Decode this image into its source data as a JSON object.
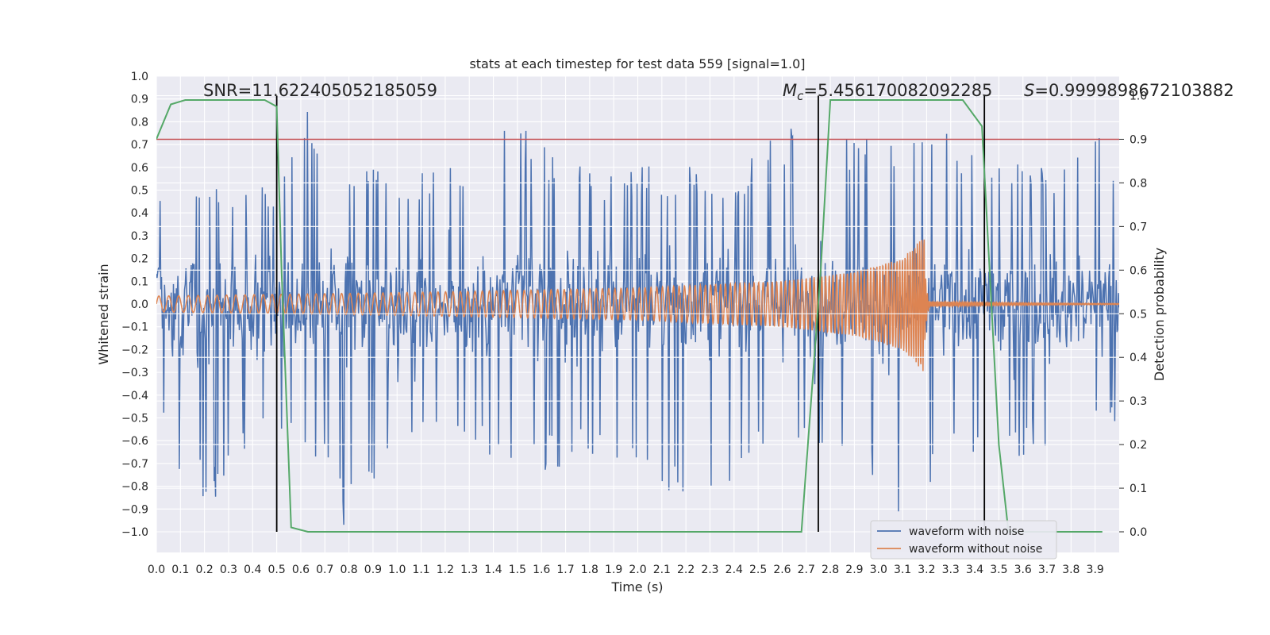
{
  "chart_data": {
    "type": "line",
    "title": "stats at each timestep for test data 559 [signal=1.0]",
    "xlabel": "Time (s)",
    "ylabel": "Whitened strain",
    "y2label": "Detection probability",
    "xlim": [
      0.0,
      4.0
    ],
    "ylim": [
      -1.09,
      1.0
    ],
    "y2lim": [
      -0.05,
      1.05
    ],
    "grid": true,
    "legend_position": "lower-right",
    "x_ticks": [
      "0.0",
      "0.1",
      "0.2",
      "0.3",
      "0.4",
      "0.5",
      "0.6",
      "0.7",
      "0.8",
      "0.9",
      "1.0",
      "1.1",
      "1.2",
      "1.3",
      "1.4",
      "1.5",
      "1.6",
      "1.7",
      "1.8",
      "1.9",
      "2.0",
      "2.1",
      "2.2",
      "2.3",
      "2.4",
      "2.5",
      "2.6",
      "2.7",
      "2.8",
      "2.9",
      "3.0",
      "3.1",
      "3.2",
      "3.3",
      "3.4",
      "3.5",
      "3.6",
      "3.7",
      "3.8",
      "3.9"
    ],
    "y_ticks": [
      "1.0",
      "0.9",
      "0.8",
      "0.7",
      "0.6",
      "0.5",
      "0.4",
      "0.3",
      "0.2",
      "0.1",
      "0.0",
      "−0.1",
      "−0.2",
      "−0.3",
      "−0.4",
      "−0.5",
      "−0.6",
      "−0.7",
      "−0.8",
      "−0.9",
      "−1.0"
    ],
    "y2_ticks": [
      "1.0",
      "0.9",
      "0.8",
      "0.7",
      "0.6",
      "0.5",
      "0.4",
      "0.3",
      "0.2",
      "0.1",
      "0.0"
    ],
    "series": [
      {
        "name": "waveform with noise",
        "color": "#4c72b0",
        "kind": "noise",
        "upper_envelope": [
          [
            0.0,
            0.5
          ],
          [
            0.1,
            0.52
          ],
          [
            0.2,
            0.6
          ],
          [
            0.3,
            0.48
          ],
          [
            0.4,
            0.55
          ],
          [
            0.5,
            0.5
          ],
          [
            0.6,
            0.9
          ],
          [
            0.65,
            0.8
          ],
          [
            0.7,
            0.55
          ],
          [
            0.8,
            0.65
          ],
          [
            1.0,
            0.55
          ],
          [
            1.2,
            0.6
          ],
          [
            1.5,
            0.8
          ],
          [
            1.8,
            0.6
          ],
          [
            2.0,
            0.6
          ],
          [
            2.2,
            0.65
          ],
          [
            2.4,
            0.55
          ],
          [
            2.6,
            0.82
          ],
          [
            2.75,
            0.7
          ],
          [
            2.9,
            0.78
          ],
          [
            3.1,
            0.7
          ],
          [
            3.3,
            0.78
          ],
          [
            3.5,
            0.7
          ],
          [
            3.7,
            0.6
          ],
          [
            3.9,
            0.78
          ],
          [
            4.0,
            0.6
          ]
        ],
        "lower_envelope": [
          [
            0.0,
            -0.55
          ],
          [
            0.15,
            -0.9
          ],
          [
            0.3,
            -0.82
          ],
          [
            0.5,
            -0.6
          ],
          [
            0.7,
            -0.75
          ],
          [
            0.78,
            -1.0
          ],
          [
            0.95,
            -0.8
          ],
          [
            1.2,
            -0.6
          ],
          [
            1.5,
            -0.75
          ],
          [
            1.8,
            -0.7
          ],
          [
            2.2,
            -0.88
          ],
          [
            2.6,
            -0.7
          ],
          [
            2.75,
            -0.65
          ],
          [
            3.1,
            -0.95
          ],
          [
            3.3,
            -0.75
          ],
          [
            3.5,
            -0.7
          ],
          [
            3.7,
            -0.65
          ],
          [
            3.9,
            -0.55
          ],
          [
            4.0,
            -0.6
          ]
        ],
        "core_amplitude": 0.34
      },
      {
        "name": "waveform without noise",
        "color": "#dd8452",
        "kind": "chirp",
        "amplitude_points": [
          [
            0.0,
            0.035
          ],
          [
            1.0,
            0.05
          ],
          [
            2.0,
            0.07
          ],
          [
            2.6,
            0.1
          ],
          [
            2.9,
            0.14
          ],
          [
            3.1,
            0.2
          ],
          [
            3.19,
            0.3
          ]
        ],
        "frequency_points": [
          [
            0.0,
            24
          ],
          [
            1.0,
            30
          ],
          [
            2.0,
            40
          ],
          [
            2.6,
            55
          ],
          [
            2.9,
            70
          ],
          [
            3.1,
            90
          ],
          [
            3.19,
            110
          ]
        ],
        "merger_time": 3.19,
        "ringdown_amplitude": 0.012
      },
      {
        "name": "detection probability",
        "color": "#55a868",
        "axis": "right",
        "points": [
          [
            0.0,
            0.9
          ],
          [
            0.06,
            0.98
          ],
          [
            0.12,
            0.99
          ],
          [
            0.45,
            0.99
          ],
          [
            0.5,
            0.975
          ],
          [
            0.52,
            0.6
          ],
          [
            0.56,
            0.01
          ],
          [
            0.63,
            0.0
          ],
          [
            2.68,
            0.0
          ],
          [
            2.76,
            0.6
          ],
          [
            2.8,
            0.99
          ],
          [
            3.35,
            0.99
          ],
          [
            3.43,
            0.93
          ],
          [
            3.5,
            0.2
          ],
          [
            3.54,
            0.0
          ],
          [
            3.93,
            0.0
          ]
        ]
      }
    ],
    "threshold": {
      "value": 0.9,
      "axis": "right",
      "color": "#c44e52"
    },
    "vertical_lines": [
      0.5,
      2.75,
      3.44
    ],
    "annotations": {
      "snr": "SNR=11.622405052185059",
      "mc_symbol": "M",
      "mc_subscript": "c",
      "mc_value": "=5.456170082092285",
      "s_symbol": "S",
      "s_value": "=0.9999898672103882"
    }
  }
}
